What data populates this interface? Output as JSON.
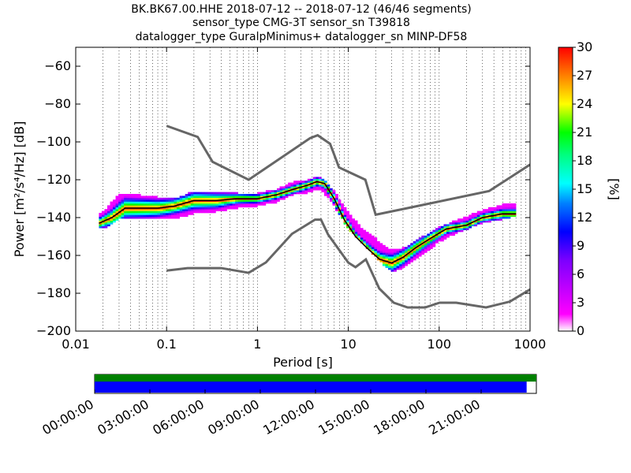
{
  "title": {
    "line1": "BK.BK67.00.HHE   2018-07-12 -- 2018-07-12  (46/46 segments)",
    "line2": "sensor_type CMG-3T sensor_sn T39818",
    "line3": "datalogger_type GuralpMinimus+ datalogger_sn MINP-DF58"
  },
  "chart_data": [
    {
      "type": "heatmap",
      "name": "ppsd",
      "xlabel": "Period [s]",
      "ylabel": "Power [m²/s⁴/Hz] [dB]",
      "x_scale": "log",
      "xlim": [
        0.01,
        1000
      ],
      "ylim": [
        -200,
        -50
      ],
      "x_ticks": [
        0.01,
        0.1,
        1,
        10,
        100,
        1000
      ],
      "x_tick_labels": [
        "0.01",
        "0.1",
        "1",
        "10",
        "100",
        "1000"
      ],
      "y_ticks": [
        -200,
        -180,
        -160,
        -140,
        -120,
        -100,
        -80,
        -60
      ],
      "y_tick_labels": [
        "−200",
        "−180",
        "−160",
        "−140",
        "−120",
        "−100",
        "−80",
        "−60"
      ],
      "grid": "dotted vertical at log minor ticks",
      "colorbar": {
        "label": "[%]",
        "min": 0,
        "max": 30,
        "ticks": [
          0,
          3,
          6,
          9,
          12,
          15,
          18,
          21,
          24,
          27,
          30
        ],
        "tick_labels": [
          "0",
          "3",
          "6",
          "9",
          "12",
          "15",
          "18",
          "21",
          "24",
          "27",
          "30"
        ],
        "colormap": "pqlx rainbow (white → magenta → blue → cyan → green → yellow → red)"
      },
      "mode_curve": {
        "period": [
          0.018,
          0.025,
          0.035,
          0.05,
          0.08,
          0.12,
          0.2,
          0.35,
          0.6,
          1.0,
          1.6,
          2.5,
          3.5,
          4.5,
          5.5,
          7,
          9,
          12,
          16,
          22,
          30,
          40,
          55,
          80,
          120,
          200,
          300,
          500,
          700
        ],
        "power_db": [
          -143,
          -140,
          -135,
          -135,
          -135,
          -134,
          -131,
          -131,
          -130,
          -130,
          -128,
          -125,
          -123,
          -121,
          -122,
          -130,
          -141,
          -150,
          -156,
          -162,
          -164,
          -161,
          -156,
          -151,
          -146,
          -144,
          -140,
          -138,
          -138
        ]
      },
      "density_cells": [
        {
          "period": 0.02,
          "low_db": -145,
          "high_db": -138
        },
        {
          "period": 0.03,
          "low_db": -140,
          "high_db": -128
        },
        {
          "period": 0.05,
          "low_db": -140,
          "high_db": -129
        },
        {
          "period": 0.08,
          "low_db": -140,
          "high_db": -130
        },
        {
          "period": 0.12,
          "low_db": -140,
          "high_db": -131
        },
        {
          "period": 0.2,
          "low_db": -137,
          "high_db": -127
        },
        {
          "period": 0.35,
          "low_db": -136,
          "high_db": -127
        },
        {
          "period": 0.6,
          "low_db": -134,
          "high_db": -128
        },
        {
          "period": 1.0,
          "low_db": -133,
          "high_db": -128
        },
        {
          "period": 1.6,
          "low_db": -131,
          "high_db": -126
        },
        {
          "period": 2.5,
          "low_db": -127,
          "high_db": -122
        },
        {
          "period": 3.5,
          "low_db": -126,
          "high_db": -121
        },
        {
          "period": 5,
          "low_db": -124,
          "high_db": -119
        },
        {
          "period": 7,
          "low_db": -133,
          "high_db": -127
        },
        {
          "period": 10,
          "low_db": -145,
          "high_db": -138
        },
        {
          "period": 14,
          "low_db": -152,
          "high_db": -146
        },
        {
          "period": 20,
          "low_db": -160,
          "high_db": -152
        },
        {
          "period": 30,
          "low_db": -168,
          "high_db": -158
        },
        {
          "period": 40,
          "low_db": -166,
          "high_db": -157
        },
        {
          "period": 60,
          "low_db": -160,
          "high_db": -152
        },
        {
          "period": 100,
          "low_db": -152,
          "high_db": -146
        },
        {
          "period": 160,
          "low_db": -147,
          "high_db": -142
        },
        {
          "period": 300,
          "low_db": -142,
          "high_db": -137
        },
        {
          "period": 600,
          "low_db": -139,
          "high_db": -133
        }
      ],
      "nlnm": {
        "period": [
          0.1,
          0.17,
          0.4,
          0.8,
          1.24,
          2.4,
          4.3,
          5.0,
          6.0,
          10,
          12,
          15.6,
          21.9,
          31.6,
          45,
          70,
          101,
          154,
          328,
          600,
          1000
        ],
        "power_db": [
          -168,
          -166.7,
          -166.7,
          -169.2,
          -163.7,
          -148.6,
          -141.1,
          -141.1,
          -149,
          -163.8,
          -166.2,
          -162.1,
          -177.5,
          -185,
          -187.5,
          -187.5,
          -185,
          -185,
          -187.5,
          -184.4,
          -178
        ]
      },
      "nhnm": {
        "period": [
          0.1,
          0.22,
          0.32,
          0.8,
          3.8,
          4.6,
          6.3,
          7.9,
          15.4,
          20,
          354,
          1000
        ],
        "power_db": [
          -91.5,
          -97.4,
          -110.5,
          -120,
          -98,
          -96.5,
          -101,
          -113.5,
          -120,
          -138.5,
          -126,
          -112
        ]
      }
    },
    {
      "type": "timeline",
      "name": "data-coverage",
      "tick_labels": [
        "00:00:00",
        "03:00:00",
        "06:00:00",
        "09:00:00",
        "12:00:00",
        "15:00:00",
        "18:00:00",
        "21:00:00"
      ],
      "coverage_fraction": 0.978,
      "colors": {
        "segments": "#008000",
        "data": "#0000ff"
      }
    }
  ],
  "colors": {
    "noise_model": "#666666",
    "mode_line": "#000000",
    "axes": "#000000"
  }
}
